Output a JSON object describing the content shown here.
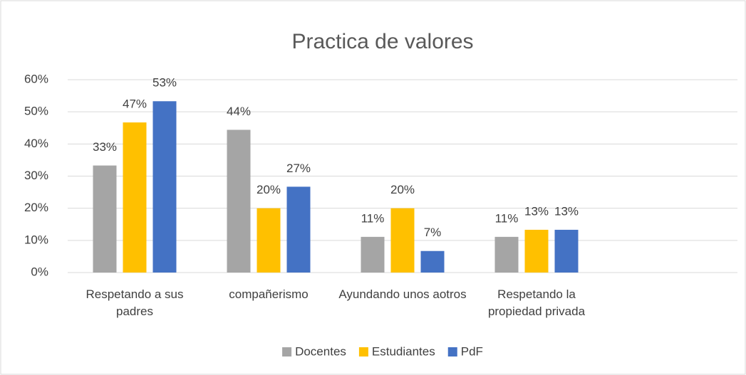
{
  "chart_data": {
    "type": "bar",
    "title": "Practica de valores",
    "categories": [
      "Respetando a sus padres",
      "compañerismo",
      "Ayundando unos aotros",
      "Respetando la propiedad privada",
      null
    ],
    "series": [
      {
        "name": "Docentes",
        "color": "#a5a5a5",
        "values": [
          33.3,
          44.4,
          11.1,
          11.1,
          null
        ],
        "value_labels": [
          "33%",
          "44%",
          "11%",
          "11%",
          null
        ]
      },
      {
        "name": "Estudiantes",
        "color": "#ffc000",
        "values": [
          46.7,
          20,
          20,
          13.3,
          null
        ],
        "value_labels": [
          "47%",
          "20%",
          "20%",
          "13%",
          null
        ]
      },
      {
        "name": "PdF",
        "color": "#4472c4",
        "values": [
          53.3,
          26.7,
          6.7,
          13.3,
          null
        ],
        "value_labels": [
          "53%",
          "27%",
          "7%",
          "13%",
          null
        ]
      }
    ],
    "ylim": [
      0,
      60
    ],
    "yticks": [
      {
        "value": 0,
        "label": "0%"
      },
      {
        "value": 10,
        "label": "10%"
      },
      {
        "value": 20,
        "label": "20%"
      },
      {
        "value": 30,
        "label": "30%"
      },
      {
        "value": 40,
        "label": "40%"
      },
      {
        "value": 50,
        "label": "50%"
      },
      {
        "value": 60,
        "label": "60%"
      }
    ],
    "grid": true,
    "legend": "bottom"
  }
}
